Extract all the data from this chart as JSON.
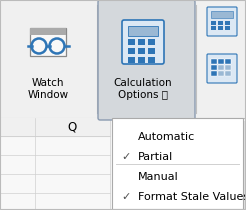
{
  "ribbon_bg": "#f0f0f0",
  "ribbon_separator_color": "#c0c0c0",
  "button_highlighted_bg": "#d4d8dc",
  "button_highlighted_border": "#8a9ab0",
  "button_normal_bg": "#f0f0f0",
  "dropdown_bg": "#ffffff",
  "dropdown_border": "#aaaaaa",
  "dropdown_shadow": "#c0c0c0",
  "grid_color": "#d0d0d0",
  "icon_blue": "#2e75b6",
  "icon_blue_light": "#9ab8d4",
  "icon_bg": "#dce8f4",
  "text_color": "#000000",
  "check_color": "#505050",
  "watch_label": "Watch\nWindow",
  "calc_label": "Calculation\nOptions",
  "menu_items": [
    "Automatic",
    "Partial",
    "Manual",
    "Format Stale Values"
  ],
  "checked_items": [
    1,
    3
  ],
  "separator_after_index": 2,
  "figsize": [
    2.46,
    2.1
  ],
  "dpi": 100
}
